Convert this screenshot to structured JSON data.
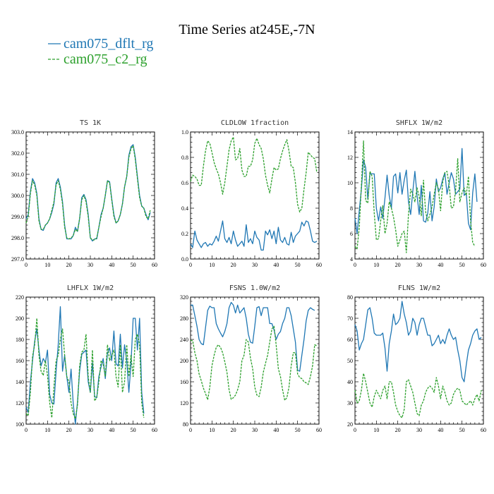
{
  "figure": {
    "title": "Time Series at245E,-7N",
    "legend": [
      {
        "label": "cam075_dflt_rg",
        "color": "#1f77b4",
        "dash": "solid"
      },
      {
        "label": "cam075_c2_rg",
        "color": "#2ca02c",
        "dash": "dashed"
      }
    ]
  },
  "chart_data": [
    {
      "type": "line",
      "title": "TS   1K",
      "xlim": [
        0,
        60
      ],
      "xticks": [
        0,
        10,
        20,
        30,
        40,
        50,
        60
      ],
      "xtick_labels": [
        "0",
        "10",
        "20",
        "30",
        "40",
        "50",
        "60"
      ],
      "ylim": [
        297,
        303
      ],
      "yticks": [
        297,
        298,
        299,
        300,
        301,
        302,
        303
      ],
      "ytick_labels": [
        "297.0",
        "298.0",
        "299.0",
        "300.0",
        "301.0",
        "302.0",
        "303.0"
      ],
      "x_start": 0,
      "series": [
        {
          "name": "cam075_dflt_rg",
          "color": "#1f77b4",
          "dash": "solid",
          "values": [
            298.9,
            299.1,
            300.2,
            300.8,
            300.6,
            300.1,
            298.9,
            298.4,
            298.35,
            298.6,
            298.7,
            298.9,
            299.2,
            299.6,
            300.6,
            300.8,
            300.4,
            299.7,
            298.6,
            297.95,
            297.95,
            297.95,
            298.1,
            298.5,
            298.3,
            298.9,
            299.9,
            300.05,
            299.8,
            299.1,
            298.0,
            297.85,
            297.95,
            297.95,
            298.5,
            299.1,
            299.4,
            300.0,
            300.7,
            300.65,
            299.85,
            299.1,
            298.7,
            298.8,
            299.1,
            299.6,
            300.4,
            300.9,
            301.9,
            302.3,
            302.4,
            301.8,
            300.9,
            300.0,
            299.5,
            299.4,
            299.1,
            298.85,
            299.2
          ]
        },
        {
          "name": "cam075_c2_rg",
          "color": "#2ca02c",
          "dash": "dashed",
          "values": [
            298.7,
            299.0,
            300.1,
            300.7,
            300.5,
            300.0,
            298.8,
            298.4,
            298.4,
            298.6,
            298.7,
            298.9,
            299.3,
            299.7,
            300.5,
            300.7,
            300.3,
            299.6,
            298.5,
            298.0,
            297.95,
            298.0,
            298.1,
            298.4,
            298.3,
            298.9,
            299.8,
            300.0,
            299.7,
            299.0,
            298.0,
            297.9,
            297.9,
            298.0,
            298.5,
            299.0,
            299.4,
            300.0,
            300.7,
            300.6,
            299.8,
            299.0,
            298.7,
            298.8,
            299.1,
            299.6,
            300.4,
            300.9,
            301.8,
            302.2,
            302.35,
            301.7,
            300.8,
            299.9,
            299.5,
            299.4,
            299.0,
            298.9,
            299.3
          ]
        }
      ]
    },
    {
      "type": "line",
      "title": "CLDLOW   1fraction",
      "xlim": [
        0,
        60
      ],
      "xticks": [
        0,
        10,
        20,
        30,
        40,
        50,
        60
      ],
      "xtick_labels": [
        "0",
        "10",
        "20",
        "30",
        "40",
        "50",
        "60"
      ],
      "ylim": [
        0,
        1
      ],
      "yticks": [
        0,
        0.2,
        0.4,
        0.6,
        0.8,
        1.0
      ],
      "ytick_labels": [
        "0.0",
        "0.2",
        "0.4",
        "0.6",
        "0.8",
        "1.0"
      ],
      "x_start": 0,
      "series": [
        {
          "name": "cam075_dflt_rg",
          "color": "#1f77b4",
          "dash": "solid",
          "values": [
            0.12,
            0.09,
            0.22,
            0.15,
            0.12,
            0.09,
            0.12,
            0.13,
            0.1,
            0.12,
            0.11,
            0.14,
            0.18,
            0.14,
            0.22,
            0.3,
            0.16,
            0.13,
            0.17,
            0.12,
            0.22,
            0.15,
            0.1,
            0.12,
            0.14,
            0.1,
            0.27,
            0.13,
            0.16,
            0.12,
            0.22,
            0.17,
            0.15,
            0.07,
            0.07,
            0.22,
            0.19,
            0.23,
            0.16,
            0.22,
            0.12,
            0.25,
            0.15,
            0.13,
            0.17,
            0.12,
            0.11,
            0.21,
            0.13,
            0.18,
            0.2,
            0.22,
            0.29,
            0.26,
            0.3,
            0.29,
            0.22,
            0.14,
            0.13,
            0.14
          ]
        },
        {
          "name": "cam075_c2_rg",
          "color": "#2ca02c",
          "dash": "dashed",
          "values": [
            0.61,
            0.66,
            0.65,
            0.63,
            0.58,
            0.58,
            0.73,
            0.85,
            0.93,
            0.91,
            0.84,
            0.76,
            0.71,
            0.67,
            0.6,
            0.51,
            0.6,
            0.73,
            0.86,
            0.93,
            0.96,
            0.78,
            0.79,
            0.87,
            0.7,
            0.65,
            0.65,
            0.73,
            0.73,
            0.78,
            0.91,
            0.95,
            0.9,
            0.87,
            0.79,
            0.66,
            0.58,
            0.52,
            0.63,
            0.72,
            0.7,
            0.71,
            0.79,
            0.85,
            0.9,
            0.94,
            0.85,
            0.73,
            0.72,
            0.6,
            0.43,
            0.37,
            0.4,
            0.55,
            0.68,
            0.84,
            0.82,
            0.8,
            0.79,
            0.68
          ]
        }
      ]
    },
    {
      "type": "line",
      "title": "SHFLX   1W/m2",
      "xlim": [
        0,
        60
      ],
      "xticks": [
        0,
        10,
        20,
        30,
        40,
        50,
        60
      ],
      "xtick_labels": [
        "0",
        "10",
        "20",
        "30",
        "40",
        "50",
        "60"
      ],
      "ylim": [
        4,
        14
      ],
      "yticks": [
        4,
        6,
        8,
        10,
        12,
        14
      ],
      "ytick_labels": [
        "4",
        "6",
        "8",
        "10",
        "12",
        "14"
      ],
      "x_start": 0,
      "series": [
        {
          "name": "cam075_dflt_rg",
          "color": "#1f77b4",
          "dash": "solid",
          "values": [
            7.2,
            6.0,
            7.8,
            9.5,
            11.8,
            11.2,
            8.7,
            10.7,
            10.7,
            10.7,
            8.0,
            7.0,
            8.1,
            7.2,
            8.8,
            10.6,
            9.0,
            8.0,
            10.5,
            10.7,
            9.2,
            10.8,
            9.1,
            10.2,
            11.0,
            8.5,
            7.5,
            9.3,
            10.9,
            9.0,
            7.5,
            9.8,
            7.0,
            6.9,
            7.6,
            9.3,
            7.0,
            8.1,
            10.3,
            9.3,
            9.6,
            10.3,
            10.8,
            9.1,
            10.0,
            10.8,
            10.3,
            9.1,
            9.3,
            9.5,
            12.7,
            9.0,
            9.2,
            6.8,
            6.3,
            9.2,
            10.7,
            8.5
          ]
        },
        {
          "name": "cam075_c2_rg",
          "color": "#2ca02c",
          "dash": "dashed",
          "values": [
            5.0,
            4.8,
            6.5,
            9.8,
            13.3,
            8.6,
            8.4,
            10.9,
            10.5,
            7.6,
            5.5,
            5.6,
            7.0,
            8.2,
            6.0,
            6.8,
            8.5,
            8.0,
            7.3,
            6.3,
            5.0,
            5.5,
            6.0,
            6.2,
            4.5,
            7.5,
            9.5,
            9.1,
            8.5,
            9.6,
            8.9,
            7.4,
            10.2,
            7.7,
            7.0,
            7.5,
            8.1,
            9.1,
            10.0,
            9.5,
            7.8,
            10.1,
            10.8,
            10.9,
            9.8,
            8.0,
            8.1,
            9.4,
            11.9,
            8.5,
            9.2,
            9.6,
            9.0,
            10.5,
            7.0,
            5.3,
            5.0
          ]
        }
      ]
    },
    {
      "type": "line",
      "title": "LHFLX   1W/m2",
      "xlim": [
        0,
        60
      ],
      "xticks": [
        0,
        10,
        20,
        30,
        40,
        50,
        60
      ],
      "xtick_labels": [
        "0",
        "10",
        "20",
        "30",
        "40",
        "50",
        "60"
      ],
      "ylim": [
        100,
        220
      ],
      "yticks": [
        100,
        120,
        140,
        160,
        180,
        200,
        220
      ],
      "ytick_labels": [
        "100",
        "120",
        "140",
        "160",
        "180",
        "200",
        "220"
      ],
      "x_start": 0,
      "series": [
        {
          "name": "cam075_dflt_rg",
          "color": "#1f77b4",
          "dash": "solid",
          "values": [
            116,
            111,
            140,
            160,
            178,
            190,
            170,
            155,
            162,
            158,
            170,
            128,
            120,
            119,
            150,
            175,
            211,
            150,
            165,
            145,
            130,
            152,
            120,
            100,
            121,
            150,
            166,
            168,
            170,
            140,
            130,
            158,
            126,
            125,
            145,
            154,
            162,
            143,
            167,
            172,
            160,
            188,
            157,
            155,
            185,
            153,
            175,
            160,
            130,
            157,
            200,
            200,
            170,
            200,
            130,
            110
          ]
        },
        {
          "name": "cam075_c2_rg",
          "color": "#2ca02c",
          "dash": "dashed",
          "values": [
            110,
            108,
            130,
            164,
            175,
            200,
            165,
            150,
            146,
            160,
            146,
            120,
            106,
            135,
            160,
            165,
            180,
            190,
            165,
            145,
            140,
            120,
            110,
            105,
            118,
            155,
            168,
            170,
            185,
            145,
            130,
            170,
            122,
            125,
            140,
            160,
            157,
            145,
            175,
            160,
            165,
            170,
            145,
            135,
            175,
            130,
            140,
            175,
            145,
            165,
            145,
            180,
            185,
            175,
            120,
            106
          ]
        }
      ]
    },
    {
      "type": "line",
      "title": "FSNS   1.0W/m2",
      "xlim": [
        0,
        60
      ],
      "xticks": [
        0,
        10,
        20,
        30,
        40,
        50,
        60
      ],
      "xtick_labels": [
        "0",
        "10",
        "20",
        "30",
        "40",
        "50",
        "60"
      ],
      "ylim": [
        80,
        320
      ],
      "yticks": [
        80,
        120,
        160,
        200,
        240,
        280,
        320
      ],
      "ytick_labels": [
        "80",
        "120",
        "160",
        "200",
        "240",
        "280",
        "320"
      ],
      "x_start": 0,
      "series": [
        {
          "name": "cam075_dflt_rg",
          "color": "#1f77b4",
          "dash": "solid",
          "values": [
            305,
            305,
            285,
            265,
            240,
            232,
            230,
            262,
            295,
            303,
            300,
            300,
            270,
            260,
            252,
            245,
            255,
            270,
            300,
            310,
            305,
            290,
            305,
            290,
            295,
            300,
            280,
            250,
            235,
            233,
            265,
            300,
            302,
            285,
            300,
            300,
            300,
            270,
            270,
            258,
            240,
            250,
            255,
            270,
            280,
            300,
            300,
            285,
            260,
            235,
            182,
            180,
            210,
            240,
            275,
            295,
            300,
            297,
            295
          ]
        },
        {
          "name": "cam075_c2_rg",
          "color": "#2ca02c",
          "dash": "dashed",
          "values": [
            238,
            238,
            215,
            200,
            175,
            162,
            148,
            138,
            126,
            150,
            190,
            210,
            225,
            230,
            225,
            215,
            198,
            178,
            145,
            127,
            130,
            135,
            145,
            160,
            200,
            210,
            240,
            235,
            205,
            185,
            150,
            135,
            132,
            150,
            178,
            195,
            210,
            235,
            260,
            265,
            230,
            185,
            170,
            145,
            125,
            130,
            150,
            190,
            215,
            215,
            175,
            168,
            166,
            160,
            158,
            155,
            170,
            190,
            230,
            228
          ]
        }
      ]
    },
    {
      "type": "line",
      "title": "FLNS   1W/m2",
      "xlim": [
        0,
        60
      ],
      "xticks": [
        0,
        10,
        20,
        30,
        40,
        50,
        60
      ],
      "xtick_labels": [
        "0",
        "10",
        "20",
        "30",
        "40",
        "50",
        "60"
      ],
      "ylim": [
        20,
        80
      ],
      "yticks": [
        20,
        30,
        40,
        50,
        60,
        70,
        80
      ],
      "ytick_labels": [
        "20",
        "30",
        "40",
        "50",
        "60",
        "70",
        "80"
      ],
      "x_start": 0,
      "series": [
        {
          "name": "cam075_dflt_rg",
          "color": "#1f77b4",
          "dash": "solid",
          "values": [
            67,
            64,
            55,
            58,
            60,
            67,
            74,
            75,
            70,
            63,
            62,
            62,
            62,
            63,
            56,
            45,
            58,
            64,
            72,
            67,
            68,
            70,
            78,
            72,
            68,
            62,
            64,
            70,
            68,
            62,
            67,
            70,
            70,
            66,
            62,
            62,
            57,
            58,
            60,
            62,
            58,
            60,
            58,
            62,
            65,
            62,
            60,
            61,
            55,
            50,
            42,
            40,
            48,
            55,
            58,
            62,
            64,
            65,
            60,
            61
          ]
        },
        {
          "name": "cam075_c2_rg",
          "color": "#2ca02c",
          "dash": "dashed",
          "values": [
            36,
            30,
            31,
            36,
            44,
            40,
            35,
            30,
            28,
            33,
            36,
            34,
            32,
            36,
            38,
            32,
            40,
            40,
            35,
            29,
            26,
            24,
            23,
            27,
            40,
            41,
            38,
            35,
            30,
            25,
            24,
            29,
            31,
            35,
            37,
            38,
            37,
            35,
            42,
            38,
            32,
            38,
            35,
            31,
            29,
            30,
            34,
            36,
            37,
            36,
            31,
            30,
            29,
            30,
            31,
            29,
            32,
            34,
            31,
            36
          ]
        }
      ]
    }
  ]
}
